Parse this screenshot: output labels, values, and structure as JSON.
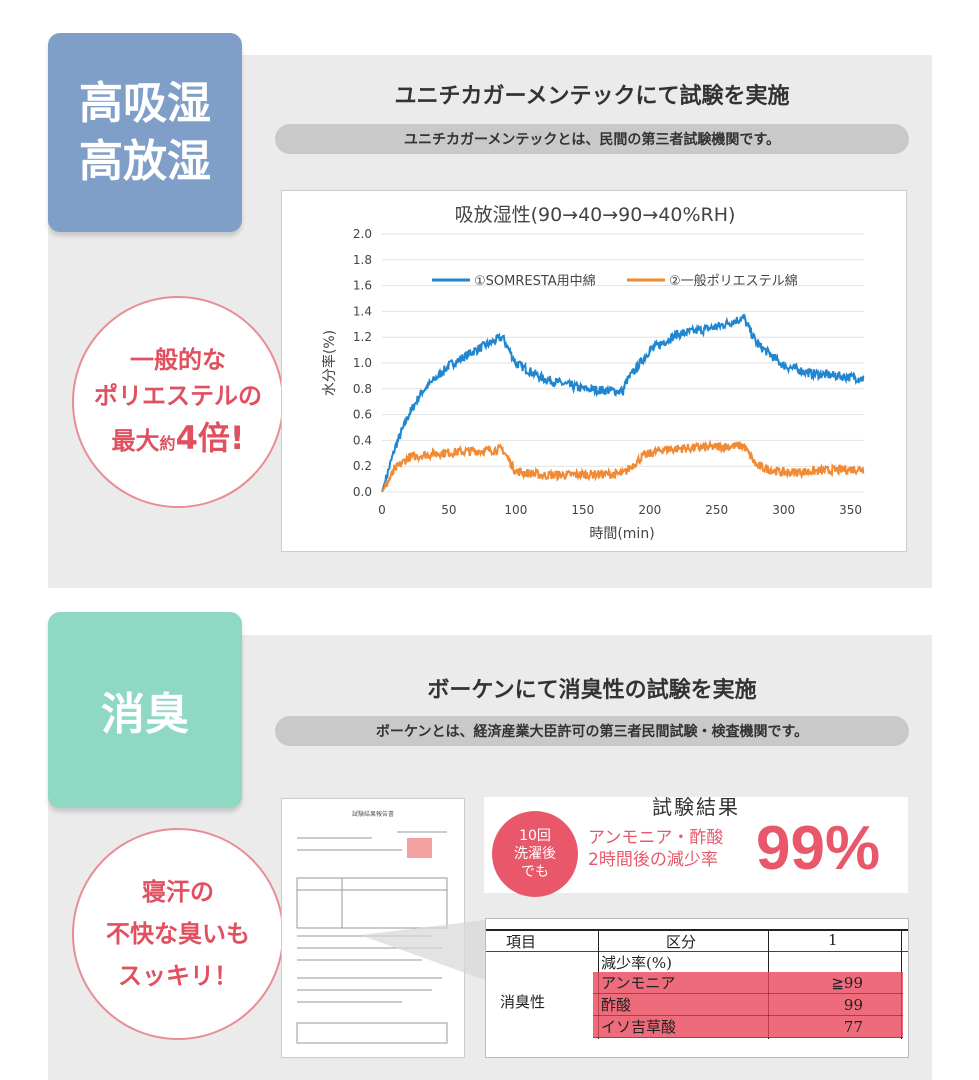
{
  "section1": {
    "badge": [
      "高吸湿",
      "高放湿"
    ],
    "badge_color": "#7f9fc8",
    "heading": "ユニチカガーメンテックにて試験を実施",
    "subheading": "ユニチカガーメンテックとは、民間の第三者試験機関です。",
    "callout": {
      "line1": "一般的な",
      "line2": "ポリエステルの",
      "line3_a": "最大",
      "line3_b": "約",
      "line3_c": "4倍!"
    }
  },
  "chart_data": {
    "type": "line",
    "title": "吸放湿性(90→40→90→40%RH)",
    "xlabel": "時間(min)",
    "ylabel": "水分率(%)",
    "xlim": [
      0,
      360
    ],
    "ylim": [
      0,
      2.0
    ],
    "xticks": [
      "0",
      "50",
      "100",
      "150",
      "200",
      "250",
      "300",
      "350"
    ],
    "yticks": [
      "0.0",
      "0.2",
      "0.4",
      "0.6",
      "0.8",
      "1.0",
      "1.2",
      "1.4",
      "1.6",
      "1.8",
      "2.0"
    ],
    "grid": true,
    "legend": "top",
    "series": [
      {
        "name": "①SOMRESTA用中綿",
        "color": "#1f86cf",
        "x": [
          0,
          10,
          20,
          30,
          50,
          70,
          90,
          100,
          120,
          150,
          180,
          182,
          200,
          220,
          250,
          270,
          280,
          300,
          320,
          360
        ],
        "y": [
          0,
          0.35,
          0.6,
          0.78,
          0.98,
          1.1,
          1.2,
          1.0,
          0.88,
          0.8,
          0.78,
          0.85,
          1.1,
          1.22,
          1.28,
          1.35,
          1.15,
          0.98,
          0.92,
          0.88
        ]
      },
      {
        "name": "②一般ポリエステル綿",
        "color": "#f08a35",
        "x": [
          0,
          10,
          20,
          40,
          90,
          100,
          120,
          180,
          195,
          210,
          270,
          280,
          300,
          360
        ],
        "y": [
          0,
          0.18,
          0.27,
          0.3,
          0.33,
          0.16,
          0.13,
          0.14,
          0.28,
          0.33,
          0.36,
          0.2,
          0.15,
          0.18
        ]
      }
    ]
  },
  "section2": {
    "badge": "消臭",
    "badge_color": "#8fd9c4",
    "heading": "ボーケンにて消臭性の試験を実施",
    "subheading": "ボーケンとは、経済産業大臣許可の第三者民間試験・検査機関です。",
    "callout": [
      "寝汗の",
      "不快な臭いも",
      "スッキリ！"
    ],
    "result_title": "試験結果",
    "result_badge": [
      "10回",
      "洗濯後",
      "でも"
    ],
    "result_text": [
      "アンモニア・酢酸",
      "2時間後の減少率"
    ],
    "result_value": "99%",
    "doc_title": "試験結果報告書",
    "table": {
      "headers": [
        "項目",
        "区分",
        "1"
      ],
      "group": "消臭性",
      "subheader": "減少率(%)",
      "rows": [
        {
          "label": "アンモニア",
          "value": "≧99"
        },
        {
          "label": "酢酸",
          "value": "99"
        },
        {
          "label": "イソ吉草酸",
          "value": "77"
        }
      ]
    }
  }
}
